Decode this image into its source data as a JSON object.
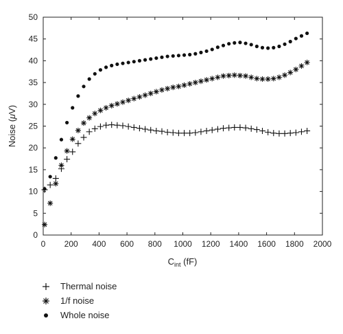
{
  "chart_data": {
    "type": "scatter",
    "title": "",
    "xlabel": {
      "base": "C",
      "sub": "int",
      "unit": " (fF)"
    },
    "ylabel": {
      "prefix": "Noise (",
      "greek": "μ",
      "suffix": "V)"
    },
    "xlim": [
      0,
      2000
    ],
    "ylim": [
      0,
      50
    ],
    "xticks": [
      0,
      200,
      400,
      600,
      800,
      1000,
      1200,
      1400,
      1600,
      1800,
      2000
    ],
    "yticks": [
      0,
      5,
      10,
      15,
      20,
      25,
      30,
      35,
      40,
      45,
      50
    ],
    "grid": false,
    "legend_position": "bottom-left, below plot",
    "x": [
      10,
      50,
      90,
      130,
      170,
      210,
      250,
      290,
      330,
      370,
      410,
      450,
      490,
      530,
      570,
      610,
      650,
      690,
      730,
      770,
      810,
      850,
      890,
      930,
      970,
      1010,
      1050,
      1090,
      1130,
      1170,
      1210,
      1250,
      1290,
      1330,
      1370,
      1410,
      1450,
      1490,
      1530,
      1570,
      1610,
      1650,
      1690,
      1730,
      1770,
      1810,
      1850,
      1890
    ],
    "series": [
      {
        "name": "Thermal noise",
        "marker": "plus",
        "values": [
          10.4,
          11.5,
          13.0,
          15.2,
          17.4,
          19.1,
          21.0,
          22.4,
          23.7,
          24.4,
          24.9,
          25.2,
          25.3,
          25.2,
          25.1,
          24.9,
          24.7,
          24.5,
          24.3,
          24.1,
          23.9,
          23.8,
          23.6,
          23.5,
          23.4,
          23.4,
          23.4,
          23.5,
          23.7,
          23.9,
          24.1,
          24.3,
          24.5,
          24.6,
          24.7,
          24.7,
          24.6,
          24.4,
          24.2,
          23.9,
          23.6,
          23.4,
          23.3,
          23.3,
          23.4,
          23.5,
          23.7,
          23.9
        ]
      },
      {
        "name": "1/f noise",
        "marker": "asterisk",
        "values": [
          2.4,
          7.3,
          11.8,
          16.0,
          19.3,
          22.0,
          24.0,
          25.7,
          26.9,
          27.9,
          28.6,
          29.2,
          29.7,
          30.1,
          30.5,
          30.9,
          31.3,
          31.7,
          32.1,
          32.5,
          32.9,
          33.3,
          33.6,
          33.9,
          34.1,
          34.4,
          34.7,
          35.0,
          35.3,
          35.6,
          35.9,
          36.2,
          36.5,
          36.6,
          36.7,
          36.6,
          36.5,
          36.2,
          35.9,
          35.8,
          35.8,
          35.9,
          36.2,
          36.7,
          37.3,
          38.0,
          38.8,
          39.6
        ]
      },
      {
        "name": "Whole noise",
        "marker": "dot",
        "values": [
          10.6,
          13.4,
          17.7,
          21.9,
          25.8,
          29.2,
          31.9,
          34.1,
          35.8,
          37.0,
          37.9,
          38.5,
          38.9,
          39.2,
          39.4,
          39.6,
          39.8,
          40.0,
          40.2,
          40.4,
          40.6,
          40.8,
          41.0,
          41.1,
          41.2,
          41.3,
          41.4,
          41.6,
          41.9,
          42.2,
          42.6,
          43.1,
          43.5,
          43.9,
          44.1,
          44.2,
          44.0,
          43.7,
          43.3,
          43.0,
          42.9,
          43.0,
          43.3,
          43.8,
          44.4,
          45.1,
          45.7,
          46.3
        ]
      }
    ]
  }
}
